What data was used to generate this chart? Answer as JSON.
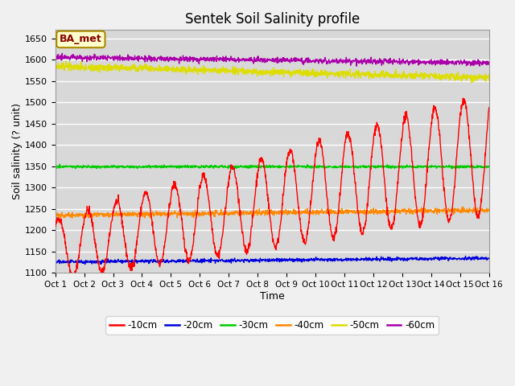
{
  "title": "Sentek Soil Salinity profile",
  "xlabel": "Time",
  "ylabel": "Soil salinity (? unit)",
  "ylim": [
    1100,
    1670
  ],
  "yticks": [
    1100,
    1150,
    1200,
    1250,
    1300,
    1350,
    1400,
    1450,
    1500,
    1550,
    1600,
    1650
  ],
  "legend_label": "BA_met",
  "x_labels": [
    "Oct 1",
    "Oct 2",
    "Oct 3",
    "Oct 4",
    "Oct 5",
    "Oct 6",
    "Oct 7",
    "Oct 8",
    "Oct 9",
    "Oct 10",
    "Oct 11",
    "Oct 12",
    "Oct 13",
    "Oct 14",
    "Oct 15",
    "Oct 16"
  ],
  "series_labels": [
    "-10cm",
    "-20cm",
    "-30cm",
    "-40cm",
    "-50cm",
    "-60cm"
  ],
  "series_colors": [
    "#ff0000",
    "#0000dd",
    "#00cc00",
    "#ff8800",
    "#dddd00",
    "#aa00aa"
  ],
  "fig_bg_color": "#f0f0f0",
  "plot_bg_color": "#d8d8d8",
  "grid_color": "#ffffff",
  "figsize": [
    6.4,
    4.8
  ],
  "dpi": 100
}
